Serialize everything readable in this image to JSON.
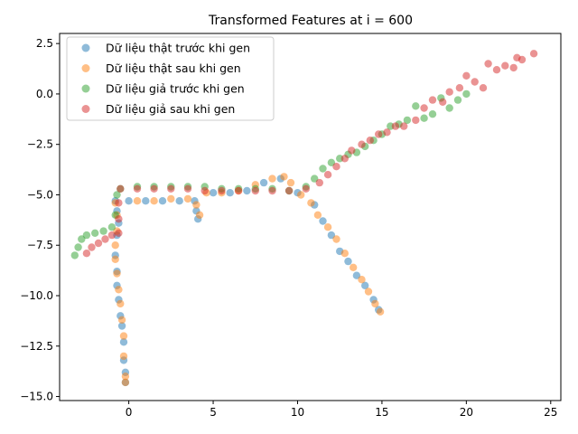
{
  "chart_data": {
    "type": "scatter",
    "title": "Transformed Features at i = 600",
    "xlabel": "",
    "ylabel": "",
    "xlim": [
      -4.1,
      25.6
    ],
    "ylim": [
      -15.2,
      3.0
    ],
    "xticks": [
      0,
      5,
      10,
      15,
      20,
      25
    ],
    "yticks": [
      2.5,
      0.0,
      -2.5,
      -5.0,
      -7.5,
      -10.0,
      -12.5,
      -15.0
    ],
    "xtick_labels": [
      "0",
      "5",
      "10",
      "15",
      "20",
      "25"
    ],
    "ytick_labels": [
      "2.5",
      "0.0",
      "−2.5",
      "−5.0",
      "−7.5",
      "−10.0",
      "−12.5",
      "−15.0"
    ],
    "grid": false,
    "legend_position": "upper-left",
    "marker_alpha": 0.5,
    "series": [
      {
        "name": "Dữ liệu thật trước khi gen",
        "color": "#1f77b4",
        "points": [
          [
            -0.8,
            -5.3
          ],
          [
            -0.7,
            -5.8
          ],
          [
            -0.6,
            -6.4
          ],
          [
            -0.7,
            -7.0
          ],
          [
            -0.8,
            -8.0
          ],
          [
            -0.7,
            -8.8
          ],
          [
            -0.7,
            -9.5
          ],
          [
            -0.6,
            -10.2
          ],
          [
            -0.5,
            -11.0
          ],
          [
            -0.4,
            -11.5
          ],
          [
            -0.3,
            -12.3
          ],
          [
            -0.3,
            -13.2
          ],
          [
            -0.2,
            -13.8
          ],
          [
            -0.2,
            -14.3
          ],
          [
            0.0,
            -5.3
          ],
          [
            1.0,
            -5.3
          ],
          [
            2.0,
            -5.3
          ],
          [
            3.0,
            -5.3
          ],
          [
            3.9,
            -5.3
          ],
          [
            4.0,
            -5.8
          ],
          [
            4.1,
            -6.2
          ],
          [
            5.0,
            -4.9
          ],
          [
            6.0,
            -4.9
          ],
          [
            7.0,
            -4.8
          ],
          [
            8.0,
            -4.4
          ],
          [
            9.0,
            -4.2
          ],
          [
            10.0,
            -4.9
          ],
          [
            11.0,
            -5.5
          ],
          [
            11.5,
            -6.3
          ],
          [
            12.0,
            -7.0
          ],
          [
            12.5,
            -7.8
          ],
          [
            13.0,
            -8.3
          ],
          [
            13.5,
            -9.0
          ],
          [
            14.0,
            -9.5
          ],
          [
            14.5,
            -10.2
          ],
          [
            14.8,
            -10.7
          ]
        ]
      },
      {
        "name": "Dữ liệu thật sau khi gen",
        "color": "#ff7f0e",
        "points": [
          [
            -0.8,
            -5.4
          ],
          [
            -0.7,
            -6.0
          ],
          [
            -0.7,
            -6.8
          ],
          [
            -0.8,
            -7.5
          ],
          [
            -0.8,
            -8.2
          ],
          [
            -0.7,
            -8.9
          ],
          [
            -0.6,
            -9.7
          ],
          [
            -0.5,
            -10.4
          ],
          [
            -0.4,
            -11.2
          ],
          [
            -0.3,
            -12.0
          ],
          [
            -0.3,
            -13.0
          ],
          [
            -0.2,
            -14.0
          ],
          [
            -0.2,
            -14.3
          ],
          [
            0.5,
            -5.3
          ],
          [
            1.5,
            -5.3
          ],
          [
            2.5,
            -5.2
          ],
          [
            3.5,
            -5.2
          ],
          [
            4.0,
            -5.5
          ],
          [
            4.2,
            -6.0
          ],
          [
            4.6,
            -4.9
          ],
          [
            5.5,
            -4.9
          ],
          [
            6.5,
            -4.8
          ],
          [
            7.5,
            -4.5
          ],
          [
            8.5,
            -4.2
          ],
          [
            9.2,
            -4.1
          ],
          [
            9.6,
            -4.4
          ],
          [
            10.2,
            -5.0
          ],
          [
            10.8,
            -5.4
          ],
          [
            11.2,
            -6.0
          ],
          [
            11.8,
            -6.6
          ],
          [
            12.3,
            -7.2
          ],
          [
            12.8,
            -7.9
          ],
          [
            13.3,
            -8.6
          ],
          [
            13.8,
            -9.2
          ],
          [
            14.2,
            -9.8
          ],
          [
            14.6,
            -10.4
          ],
          [
            14.9,
            -10.8
          ]
        ]
      },
      {
        "name": "Dữ liệu giả trước khi gen",
        "color": "#2ca02c",
        "points": [
          [
            -3.2,
            -8.0
          ],
          [
            -3.0,
            -7.6
          ],
          [
            -2.8,
            -7.2
          ],
          [
            -2.5,
            -7.0
          ],
          [
            -2.0,
            -6.9
          ],
          [
            -1.5,
            -6.8
          ],
          [
            -1.0,
            -6.6
          ],
          [
            -0.8,
            -6.0
          ],
          [
            -0.7,
            -5.0
          ],
          [
            -0.5,
            -4.7
          ],
          [
            0.5,
            -4.6
          ],
          [
            1.5,
            -4.6
          ],
          [
            2.5,
            -4.6
          ],
          [
            3.5,
            -4.6
          ],
          [
            4.5,
            -4.6
          ],
          [
            5.5,
            -4.7
          ],
          [
            6.5,
            -4.7
          ],
          [
            7.5,
            -4.7
          ],
          [
            8.5,
            -4.7
          ],
          [
            9.5,
            -4.8
          ],
          [
            10.5,
            -4.6
          ],
          [
            11.0,
            -4.2
          ],
          [
            11.5,
            -3.7
          ],
          [
            12.0,
            -3.4
          ],
          [
            12.5,
            -3.2
          ],
          [
            13.0,
            -3.0
          ],
          [
            13.5,
            -2.9
          ],
          [
            14.0,
            -2.6
          ],
          [
            14.5,
            -2.3
          ],
          [
            15.0,
            -2.0
          ],
          [
            15.5,
            -1.6
          ],
          [
            16.0,
            -1.5
          ],
          [
            16.5,
            -1.3
          ],
          [
            17.0,
            -0.6
          ],
          [
            17.5,
            -1.2
          ],
          [
            18.0,
            -1.0
          ],
          [
            18.5,
            -0.2
          ],
          [
            19.0,
            -0.7
          ],
          [
            19.5,
            -0.3
          ],
          [
            20.0,
            0.0
          ]
        ]
      },
      {
        "name": "Dữ liệu giả sau khi gen",
        "color": "#d62728",
        "points": [
          [
            -2.5,
            -7.9
          ],
          [
            -2.2,
            -7.6
          ],
          [
            -1.8,
            -7.4
          ],
          [
            -1.4,
            -7.2
          ],
          [
            -1.0,
            -7.0
          ],
          [
            -0.6,
            -6.9
          ],
          [
            -0.6,
            -6.2
          ],
          [
            -0.6,
            -5.4
          ],
          [
            -0.5,
            -4.7
          ],
          [
            0.5,
            -4.7
          ],
          [
            1.5,
            -4.7
          ],
          [
            2.5,
            -4.7
          ],
          [
            3.5,
            -4.7
          ],
          [
            4.5,
            -4.8
          ],
          [
            5.5,
            -4.8
          ],
          [
            6.5,
            -4.8
          ],
          [
            7.5,
            -4.8
          ],
          [
            8.5,
            -4.8
          ],
          [
            9.5,
            -4.8
          ],
          [
            10.5,
            -4.7
          ],
          [
            11.3,
            -4.4
          ],
          [
            11.8,
            -4.0
          ],
          [
            12.3,
            -3.6
          ],
          [
            12.8,
            -3.2
          ],
          [
            13.2,
            -2.8
          ],
          [
            13.8,
            -2.5
          ],
          [
            14.3,
            -2.3
          ],
          [
            14.8,
            -2.0
          ],
          [
            15.3,
            -1.9
          ],
          [
            15.8,
            -1.6
          ],
          [
            16.3,
            -1.6
          ],
          [
            17.0,
            -1.3
          ],
          [
            17.5,
            -0.7
          ],
          [
            18.0,
            -0.3
          ],
          [
            18.6,
            -0.4
          ],
          [
            19.0,
            0.1
          ],
          [
            19.6,
            0.3
          ],
          [
            20.0,
            0.9
          ],
          [
            20.5,
            0.6
          ],
          [
            21.0,
            0.3
          ],
          [
            21.3,
            1.5
          ],
          [
            21.8,
            1.2
          ],
          [
            22.3,
            1.4
          ],
          [
            22.8,
            1.3
          ],
          [
            23.0,
            1.8
          ],
          [
            23.3,
            1.7
          ],
          [
            24.0,
            2.0
          ]
        ]
      }
    ]
  }
}
